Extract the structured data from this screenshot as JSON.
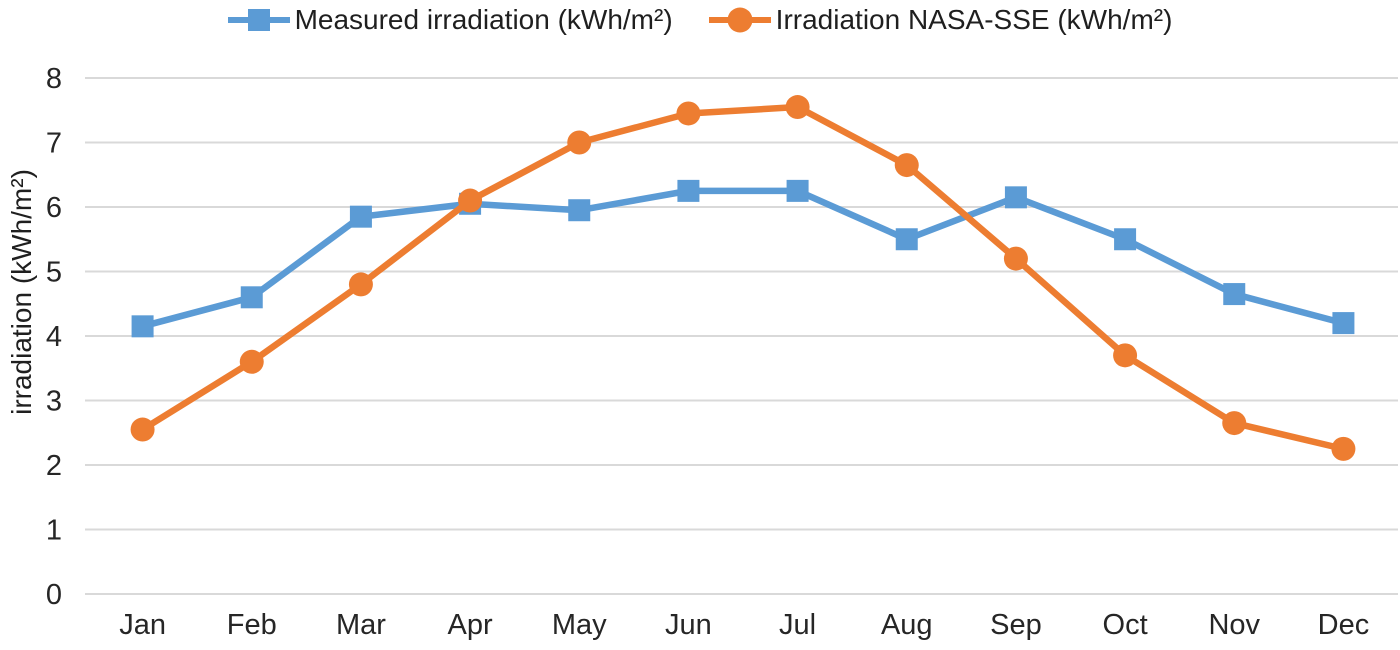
{
  "chart_data": {
    "type": "line",
    "title": "",
    "xlabel": "",
    "ylabel": "irradiation (kWh/m²)",
    "categories": [
      "Jan",
      "Feb",
      "Mar",
      "Apr",
      "May",
      "Jun",
      "Jul",
      "Aug",
      "Sep",
      "Oct",
      "Nov",
      "Dec"
    ],
    "series": [
      {
        "name": "Measured irradiation (kWh/m²)",
        "color": "#5B9BD5",
        "marker": "square",
        "values": [
          4.15,
          4.6,
          5.85,
          6.05,
          5.95,
          6.25,
          6.25,
          5.5,
          6.15,
          5.5,
          4.65,
          4.2
        ]
      },
      {
        "name": "Irradiation NASA-SSE (kWh/m²)",
        "color": "#ED7D31",
        "marker": "circle",
        "values": [
          2.55,
          3.6,
          4.8,
          6.1,
          7.0,
          7.45,
          7.55,
          6.65,
          5.2,
          3.7,
          2.65,
          2.25
        ]
      }
    ],
    "ylim": [
      0,
      8
    ],
    "yticks": [
      0,
      1,
      2,
      3,
      4,
      5,
      6,
      7,
      8
    ],
    "grid": "horizontal",
    "legend_position": "top",
    "gridline_color": "#D9D9D9",
    "text_color": "#262626",
    "background": "#FFFFFF"
  }
}
